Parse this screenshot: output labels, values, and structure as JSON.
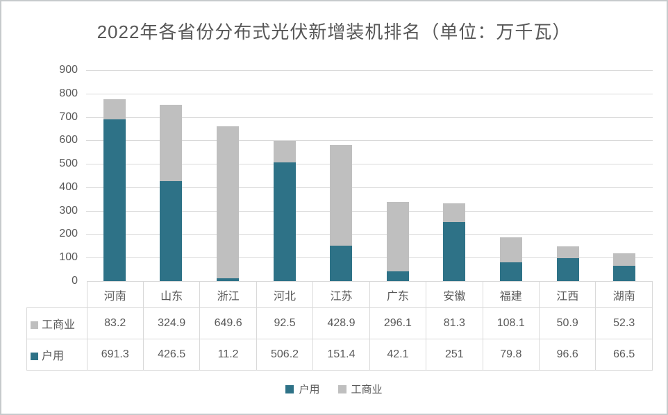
{
  "title": "2022年各省份分布式光伏新增装机排名（单位：万千瓦）",
  "chart_data": {
    "type": "bar",
    "stacked": true,
    "title": "2022年各省份分布式光伏新增装机排名（单位：万千瓦）",
    "unit": "万千瓦",
    "categories": [
      "河南",
      "山东",
      "浙江",
      "河北",
      "江苏",
      "广东",
      "安徽",
      "福建",
      "江西",
      "湖南"
    ],
    "series": [
      {
        "id": "residential",
        "name": "户用",
        "color": "#2e7287",
        "values": [
          691.3,
          426.5,
          11.2,
          506.2,
          151.4,
          42.1,
          251,
          79.8,
          96.6,
          66.5
        ]
      },
      {
        "id": "commercial",
        "name": "工商业",
        "color": "#bfbfbf",
        "values": [
          83.2,
          324.9,
          649.6,
          92.5,
          428.9,
          296.1,
          81.3,
          108.1,
          50.9,
          52.3
        ]
      }
    ],
    "ylim": [
      0,
      900
    ],
    "ytick_interval": 100,
    "yticks": [
      0,
      100,
      200,
      300,
      400,
      500,
      600,
      700,
      800,
      900
    ],
    "grid": true,
    "legend_position": "bottom",
    "legend_order": [
      "户用",
      "工商业"
    ]
  },
  "table": {
    "row_order": [
      "工商业",
      "户用"
    ]
  },
  "colors": {
    "grid_line": "#d9d9d9",
    "table_border": "#d9d9d9",
    "text": "#595959",
    "frame_border": "#c6cacc",
    "background": "#ffffff"
  }
}
